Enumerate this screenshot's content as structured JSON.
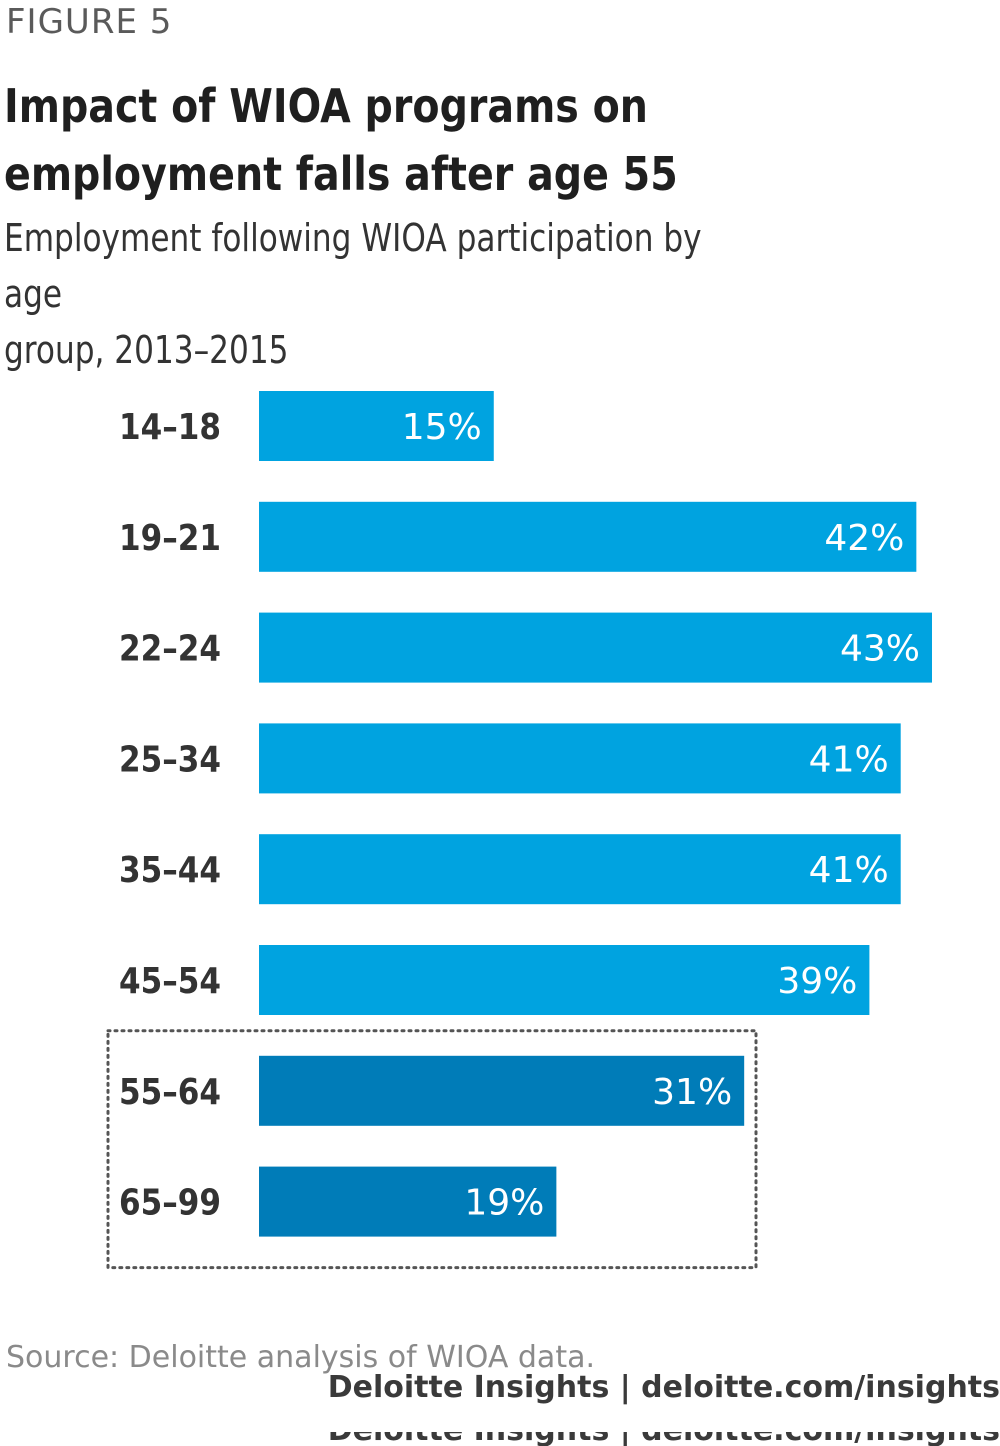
{
  "header": {
    "figure_label": "FIGURE 5",
    "title_line1": "Impact of WIOA programs on",
    "title_line2": "employment falls after age 55",
    "subtitle_line1": "Employment following WIOA participation by age",
    "subtitle_line2": "group, 2013–2015"
  },
  "colors": {
    "bar_primary": "#00a3e0",
    "bar_highlight": "#007cb8",
    "bar_label": "#ffffff",
    "category_label": "#333333",
    "highlight_border": "#555555"
  },
  "chart_data": {
    "type": "bar",
    "orientation": "horizontal",
    "categories": [
      "14–18",
      "19–21",
      "22–24",
      "25–34",
      "35–44",
      "45–54",
      "55–64",
      "65–99"
    ],
    "values": [
      15,
      42,
      43,
      41,
      41,
      39,
      31,
      19
    ],
    "value_labels": [
      "15%",
      "42%",
      "43%",
      "41%",
      "41%",
      "39%",
      "31%",
      "19%"
    ],
    "highlighted_categories": [
      "55–64",
      "65–99"
    ],
    "unit": "%",
    "xlim": [
      0,
      45
    ],
    "grid": false,
    "legend": "none"
  },
  "source": {
    "text": "Source: Deloitte analysis of WIOA data."
  },
  "footer": {
    "text": "Deloitte Insights | deloitte.com/insights"
  }
}
